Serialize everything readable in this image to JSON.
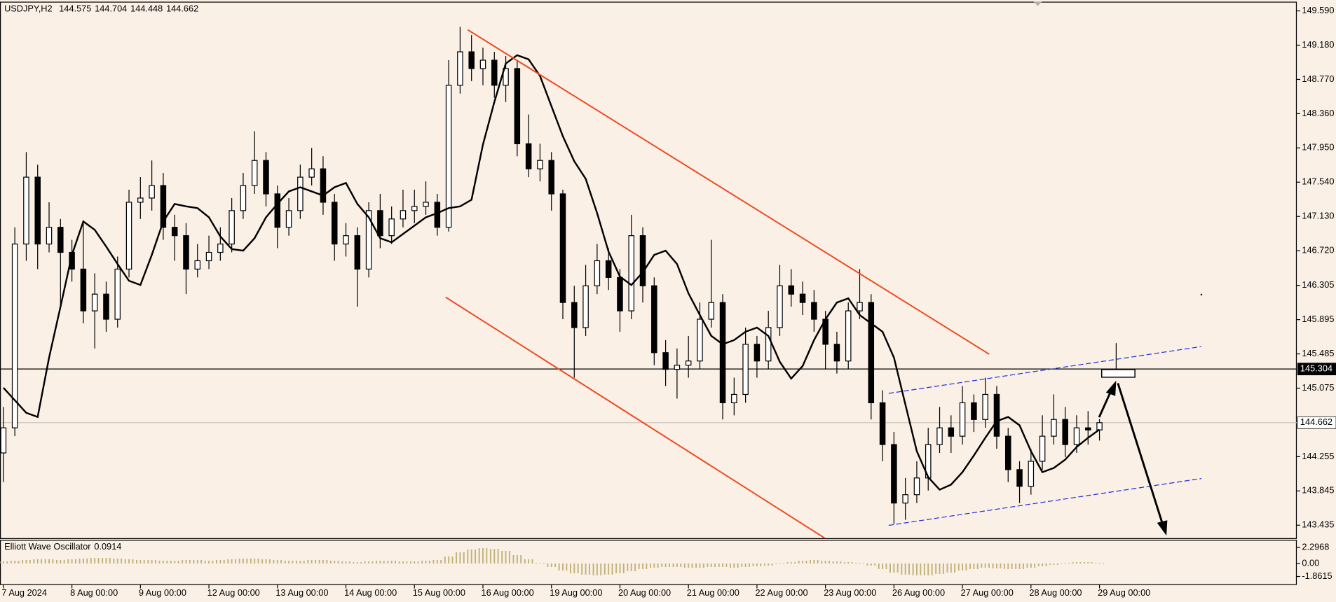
{
  "chart_data": {
    "type": "candlestick",
    "symbol": "USDJPY,H2",
    "colors": {
      "up": "#ffffff",
      "down": "#000000",
      "ma": "#000000",
      "oscillator": "#c2b27a",
      "background": "#faf0e6"
    },
    "ylim": [
      143.28,
      149.7
    ],
    "yticks": [
      {
        "value": 149.59,
        "label": "149.590"
      },
      {
        "value": 149.18,
        "label": "149.180"
      },
      {
        "value": 148.77,
        "label": "148.770"
      },
      {
        "value": 148.36,
        "label": "148.360"
      },
      {
        "value": 147.95,
        "label": "147.950"
      },
      {
        "value": 147.54,
        "label": "147.540"
      },
      {
        "value": 147.13,
        "label": "147.130"
      },
      {
        "value": 146.72,
        "label": "146.720"
      },
      146.305,
      145.895,
      145.485,
      145.075,
      144.255,
      143.845,
      143.435
    ],
    "xticks": [
      {
        "value": 0,
        "label": "7 Aug 2024"
      },
      {
        "value": 6,
        "label": "8 Aug 00:00"
      },
      {
        "value": 12,
        "label": "9 Aug 00:00"
      },
      {
        "value": 18,
        "label": "12 Aug 00:00"
      },
      {
        "value": 24,
        "label": "13 Aug 00:00"
      },
      {
        "value": 30,
        "label": "14 Aug 00:00"
      },
      {
        "value": 36,
        "label": "15 Aug 00:00"
      },
      {
        "value": 42,
        "label": "16 Aug 00:00"
      },
      {
        "value": 48,
        "label": "19 Aug 00:00"
      },
      {
        "value": 54,
        "label": "20 Aug 00:00"
      },
      {
        "value": 60,
        "label": "21 Aug 00:00"
      },
      {
        "value": 66,
        "label": "22 Aug 00:00"
      },
      {
        "value": 72,
        "label": "23 Aug 00:00"
      },
      {
        "value": 78,
        "label": "26 Aug 00:00"
      },
      {
        "value": 84,
        "label": "27 Aug 00:00"
      },
      {
        "value": 90,
        "label": "28 Aug 00:00"
      },
      {
        "value": 96,
        "label": "29 Aug 00:00"
      }
    ],
    "price_lines": [
      {
        "value": 145.304,
        "color": "#000000"
      },
      {
        "value": 144.662,
        "color": "#c8c0b8"
      }
    ],
    "candles": [
      [
        144.3,
        144.85,
        143.95,
        144.6
      ],
      [
        144.6,
        147.0,
        144.5,
        146.8
      ],
      [
        146.8,
        147.9,
        146.6,
        147.6
      ],
      [
        147.6,
        147.75,
        146.5,
        146.8
      ],
      [
        146.8,
        147.3,
        146.7,
        147.0
      ],
      [
        147.0,
        147.1,
        146.05,
        146.7
      ],
      [
        146.7,
        146.85,
        146.35,
        146.5
      ],
      [
        146.5,
        147.05,
        145.85,
        146.0
      ],
      [
        146.0,
        146.45,
        145.55,
        146.2
      ],
      [
        146.2,
        146.35,
        145.75,
        145.9
      ],
      [
        145.9,
        146.65,
        145.8,
        146.5
      ],
      [
        146.5,
        147.45,
        146.4,
        147.3
      ],
      [
        147.3,
        147.6,
        147.1,
        147.35
      ],
      [
        147.35,
        147.8,
        147.2,
        147.5
      ],
      [
        147.5,
        147.65,
        146.85,
        147.0
      ],
      [
        147.0,
        147.15,
        146.6,
        146.9
      ],
      [
        146.9,
        147.05,
        146.2,
        146.5
      ],
      [
        146.5,
        146.8,
        146.4,
        146.6
      ],
      [
        146.6,
        146.9,
        146.5,
        146.7
      ],
      [
        146.7,
        147.0,
        146.6,
        146.8
      ],
      [
        146.8,
        147.35,
        146.7,
        147.2
      ],
      [
        147.2,
        147.65,
        147.1,
        147.5
      ],
      [
        147.5,
        148.15,
        147.4,
        147.8
      ],
      [
        147.8,
        147.9,
        147.25,
        147.4
      ],
      [
        147.4,
        147.5,
        146.75,
        147.0
      ],
      [
        147.0,
        147.35,
        146.9,
        147.2
      ],
      [
        147.2,
        147.75,
        147.1,
        147.6
      ],
      [
        147.6,
        147.95,
        147.5,
        147.7
      ],
      [
        147.7,
        147.85,
        147.15,
        147.3
      ],
      [
        147.3,
        147.4,
        146.6,
        146.8
      ],
      [
        146.8,
        147.05,
        146.65,
        146.9
      ],
      [
        146.9,
        147.0,
        146.05,
        146.5
      ],
      [
        146.5,
        147.3,
        146.4,
        147.2
      ],
      [
        147.2,
        147.4,
        146.75,
        146.9
      ],
      [
        146.9,
        147.25,
        146.8,
        147.1
      ],
      [
        147.1,
        147.45,
        147.0,
        147.2
      ],
      [
        147.2,
        147.45,
        147.05,
        147.25
      ],
      [
        147.25,
        147.55,
        147.15,
        147.3
      ],
      [
        147.3,
        147.4,
        146.9,
        147.0
      ],
      [
        147.0,
        149.0,
        146.95,
        148.7
      ],
      [
        148.7,
        149.4,
        148.6,
        149.1
      ],
      [
        149.1,
        149.3,
        148.75,
        148.9
      ],
      [
        148.9,
        149.15,
        148.7,
        149.0
      ],
      [
        149.0,
        149.1,
        148.55,
        148.7
      ],
      [
        148.7,
        149.05,
        148.5,
        148.9
      ],
      [
        148.9,
        149.0,
        147.85,
        148.0
      ],
      [
        148.0,
        148.35,
        147.6,
        147.7
      ],
      [
        147.7,
        148.0,
        147.55,
        147.8
      ],
      [
        147.8,
        147.9,
        147.2,
        147.4
      ],
      [
        147.4,
        147.45,
        145.9,
        146.1
      ],
      [
        146.1,
        146.3,
        145.2,
        145.8
      ],
      [
        145.8,
        146.55,
        145.7,
        146.3
      ],
      [
        146.3,
        146.8,
        146.2,
        146.6
      ],
      [
        146.6,
        146.75,
        146.25,
        146.4
      ],
      [
        146.4,
        146.5,
        145.75,
        146.0
      ],
      [
        146.0,
        147.15,
        145.9,
        146.9
      ],
      [
        146.9,
        147.0,
        146.1,
        146.3
      ],
      [
        146.3,
        146.4,
        145.35,
        145.5
      ],
      [
        145.5,
        145.65,
        145.1,
        145.3
      ],
      [
        145.3,
        145.55,
        144.95,
        145.35
      ],
      [
        145.35,
        145.7,
        145.2,
        145.4
      ],
      [
        145.4,
        146.1,
        145.3,
        145.9
      ],
      [
        145.9,
        146.85,
        145.8,
        146.1
      ],
      [
        146.1,
        146.2,
        144.7,
        144.9
      ],
      [
        144.9,
        145.2,
        144.75,
        145.0
      ],
      [
        145.0,
        145.8,
        144.9,
        145.6
      ],
      [
        145.6,
        145.7,
        145.2,
        145.4
      ],
      [
        145.4,
        146.0,
        145.3,
        145.8
      ],
      [
        145.8,
        146.55,
        145.7,
        146.3
      ],
      [
        146.3,
        146.5,
        146.05,
        146.2
      ],
      [
        146.2,
        146.35,
        145.95,
        146.1
      ],
      [
        146.1,
        146.25,
        145.75,
        145.9
      ],
      [
        145.9,
        146.0,
        145.3,
        145.6
      ],
      [
        145.6,
        145.75,
        145.25,
        145.4
      ],
      [
        145.4,
        146.1,
        145.3,
        146.0
      ],
      [
        146.0,
        146.5,
        145.9,
        146.1
      ],
      [
        146.1,
        146.2,
        144.7,
        144.9
      ],
      [
        144.9,
        145.05,
        144.2,
        144.4
      ],
      [
        144.4,
        144.55,
        143.45,
        143.7
      ],
      [
        143.7,
        144.0,
        143.5,
        143.8
      ],
      [
        143.8,
        144.2,
        143.7,
        144.0
      ],
      [
        144.0,
        144.6,
        143.85,
        144.4
      ],
      [
        144.4,
        144.85,
        144.3,
        144.6
      ],
      [
        144.6,
        144.75,
        144.3,
        144.5
      ],
      [
        144.5,
        145.1,
        144.4,
        144.9
      ],
      [
        144.9,
        145.0,
        144.55,
        144.7
      ],
      [
        144.7,
        145.2,
        144.6,
        145.0
      ],
      [
        145.0,
        145.1,
        144.35,
        144.5
      ],
      [
        144.5,
        144.6,
        143.95,
        144.1
      ],
      [
        144.1,
        144.2,
        143.7,
        143.9
      ],
      [
        143.9,
        144.35,
        143.8,
        144.2
      ],
      [
        144.2,
        144.75,
        144.1,
        144.5
      ],
      [
        144.5,
        145.0,
        144.4,
        144.7
      ],
      [
        144.7,
        144.85,
        144.25,
        144.4
      ],
      [
        144.4,
        144.75,
        144.3,
        144.6
      ],
      [
        144.6,
        144.8,
        144.4,
        144.575
      ],
      [
        144.575,
        144.704,
        144.448,
        144.662
      ]
    ],
    "ma": {
      "values": [
        145.08,
        144.93,
        144.78,
        144.73,
        145.44,
        146.05,
        146.67,
        147.07,
        146.97,
        146.77,
        146.56,
        146.36,
        146.31,
        146.67,
        147.07,
        147.28,
        147.25,
        147.23,
        147.12,
        146.89,
        146.74,
        146.72,
        146.87,
        147.12,
        147.28,
        147.43,
        147.48,
        147.43,
        147.38,
        147.48,
        147.53,
        147.28,
        147.12,
        146.87,
        146.82,
        146.92,
        147.02,
        147.12,
        147.17,
        147.23,
        147.25,
        147.33,
        147.99,
        148.5,
        148.96,
        149.06,
        149.01,
        148.81,
        148.45,
        148.09,
        147.79,
        147.58,
        147.17,
        146.71,
        146.41,
        146.31,
        146.46,
        146.67,
        146.72,
        146.56,
        146.21,
        145.95,
        145.7,
        145.6,
        145.65,
        145.75,
        145.8,
        145.7,
        145.39,
        145.19,
        145.34,
        145.65,
        145.9,
        146.1,
        146.15,
        145.95,
        145.85,
        145.75,
        145.44,
        144.88,
        144.32,
        144.01,
        143.86,
        143.92,
        144.07,
        144.27,
        144.48,
        144.68,
        144.73,
        144.63,
        144.32,
        144.07,
        144.12,
        144.22,
        144.37,
        144.48,
        144.58
      ]
    },
    "oscillator": {
      "name": "Elliott Wave Oscillator",
      "ylim": [
        -3.08,
        3.39
      ],
      "yticks": [
        2.2968,
        {
          "value": 0,
          "label": "0.00"
        },
        -1.8615
      ],
      "values": [
        0.3,
        0.4,
        0.5,
        0.6,
        0.6,
        0.5,
        0.6,
        0.7,
        0.8,
        0.8,
        0.7,
        0.6,
        0.5,
        0.5,
        0.4,
        0.4,
        0.5,
        0.5,
        0.4,
        0.5,
        0.6,
        0.7,
        0.7,
        0.6,
        0.5,
        0.4,
        0.4,
        0.5,
        0.5,
        0.4,
        0.3,
        0.2,
        0.3,
        0.4,
        0.4,
        0.3,
        0.3,
        0.4,
        0.5,
        1.0,
        1.6,
        2.0,
        2.2,
        2.1,
        1.8,
        1.2,
        0.6,
        0.1,
        -0.5,
        -1.0,
        -1.4,
        -1.6,
        -1.7,
        -1.6,
        -1.4,
        -1.1,
        -0.8,
        -0.6,
        -0.5,
        -0.5,
        -0.6,
        -0.6,
        -0.5,
        -0.5,
        -0.6,
        -0.5,
        -0.4,
        -0.3,
        -0.1,
        0.2,
        0.4,
        0.5,
        0.4,
        0.3,
        0.2,
        0.1,
        -0.3,
        -0.8,
        -1.3,
        -1.6,
        -1.7,
        -1.7,
        -1.5,
        -1.3,
        -1.0,
        -0.8,
        -0.6,
        -0.7,
        -0.8,
        -0.8,
        -0.6,
        -0.4,
        -0.2,
        0.1,
        0.2,
        0.2,
        0.0914
      ]
    }
  }
}
